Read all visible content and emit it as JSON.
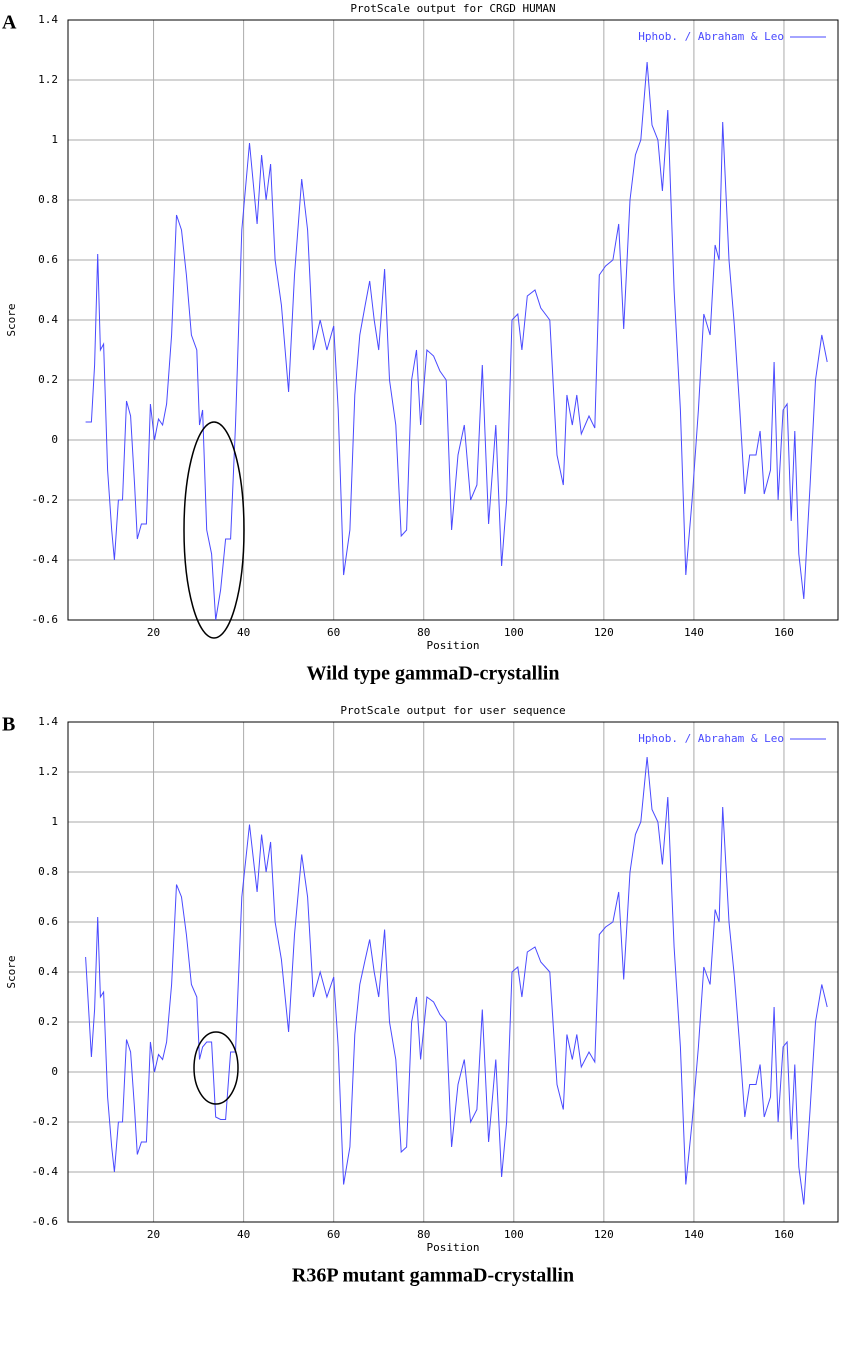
{
  "chart_data": [
    {
      "type": "line",
      "panel": "A",
      "title": "ProtScale output for CRGD HUMAN",
      "xlabel": "Position",
      "ylabel": "Score",
      "caption": "Wild type gammaD-crystallin",
      "xlim": [
        1,
        172
      ],
      "ylim": [
        -0.6,
        1.4
      ],
      "xticks": [
        20,
        40,
        60,
        80,
        100,
        120,
        140,
        160
      ],
      "yticks": [
        -0.6,
        -0.4,
        -0.2,
        0,
        0.2,
        0.4,
        0.6,
        0.8,
        1,
        1.2,
        1.4
      ],
      "grid": true,
      "legend": "upper right",
      "x": [
        4.9,
        6.2,
        6.9,
        7.6,
        8.2,
        8.9,
        9.8,
        10.7,
        11.3,
        12.2,
        13.1,
        14,
        14.9,
        15.8,
        16.4,
        17.3,
        18.4,
        19.3,
        20.2,
        21.1,
        22,
        22.9,
        24,
        25.1,
        26.2,
        27.3,
        28.4,
        29.6,
        30.2,
        30.9,
        31.8,
        32.9,
        33.8,
        34.9,
        36,
        37.1,
        38.2,
        39.6,
        41.3,
        43,
        44,
        45,
        46,
        47,
        48.4,
        50,
        51.3,
        52.9,
        54.2,
        55.5,
        57,
        58.5,
        60,
        61,
        62.2,
        63.6,
        64.7,
        65.8,
        67,
        68,
        69,
        70,
        71.3,
        72.4,
        73.8,
        75,
        76.2,
        77.3,
        78.4,
        79.3,
        80.7,
        82.2,
        83.6,
        85,
        86.2,
        87.6,
        89,
        90.4,
        91.8,
        93,
        94.4,
        96,
        97.3,
        98.4,
        99.6,
        100.9,
        101.8,
        103,
        104.7,
        106,
        108,
        109.6,
        111,
        111.8,
        113,
        114,
        115,
        116.7,
        118,
        119,
        120.4,
        122,
        123.3,
        124.4,
        125.8,
        127,
        128.2,
        129.6,
        130.7,
        132,
        133,
        134.2,
        135.6,
        137,
        138.2,
        139.6,
        141,
        142.2,
        143.6,
        144.7,
        145.6,
        146.4,
        147.8,
        149,
        150.2,
        151.3,
        152.4,
        153.8,
        154.7,
        155.6,
        157,
        157.8,
        158.7,
        159.8,
        160.7,
        161.6,
        162.4,
        163.3,
        164.4,
        165.8,
        167,
        168.4,
        169.6
      ],
      "series": [
        {
          "name": "Hphob. / Abraham & Leo",
          "color": "#4a4aff",
          "values": [
            0.06,
            0.06,
            0.25,
            0.62,
            0.3,
            0.32,
            -0.1,
            -0.3,
            -0.4,
            -0.2,
            -0.2,
            0.13,
            0.08,
            -0.15,
            -0.33,
            -0.28,
            -0.28,
            0.12,
            0,
            0.07,
            0.05,
            0.12,
            0.35,
            0.75,
            0.7,
            0.55,
            0.35,
            0.3,
            0.05,
            0.1,
            -0.3,
            -0.38,
            -0.6,
            -0.5,
            -0.33,
            -0.33,
            0.05,
            0.7,
            0.99,
            0.72,
            0.95,
            0.8,
            0.92,
            0.6,
            0.45,
            0.16,
            0.55,
            0.87,
            0.7,
            0.3,
            0.4,
            0.3,
            0.38,
            0.1,
            -0.45,
            -0.3,
            0.15,
            0.35,
            0.45,
            0.53,
            0.4,
            0.3,
            0.57,
            0.2,
            0.05,
            -0.32,
            -0.3,
            0.2,
            0.3,
            0.05,
            0.3,
            0.28,
            0.23,
            0.2,
            -0.3,
            -0.05,
            0.05,
            -0.2,
            -0.15,
            0.25,
            -0.28,
            0.05,
            -0.42,
            -0.2,
            0.4,
            0.42,
            0.3,
            0.48,
            0.5,
            0.44,
            0.4,
            -0.05,
            -0.15,
            0.15,
            0.05,
            0.15,
            0.02,
            0.08,
            0.04,
            0.55,
            0.58,
            0.6,
            0.72,
            0.37,
            0.8,
            0.95,
            1.0,
            1.26,
            1.05,
            1.0,
            0.83,
            1.1,
            0.5,
            0.1,
            -0.45,
            -0.2,
            0.1,
            0.42,
            0.35,
            0.65,
            0.6,
            1.06,
            0.6,
            0.38,
            0.1,
            -0.18,
            -0.05,
            -0.05,
            0.03,
            -0.18,
            -0.1,
            0.26,
            -0.2,
            0.1,
            0.12,
            -0.27,
            0.03,
            -0.38,
            -0.53,
            -0.15,
            0.2,
            0.35,
            0.26
          ]
        }
      ]
    },
    {
      "type": "line",
      "panel": "B",
      "title": "ProtScale output for user sequence",
      "xlabel": "Position",
      "ylabel": "Score",
      "caption": "R36P mutant gammaD-crystallin",
      "xlim": [
        1,
        172
      ],
      "ylim": [
        -0.6,
        1.4
      ],
      "xticks": [
        20,
        40,
        60,
        80,
        100,
        120,
        140,
        160
      ],
      "yticks": [
        -0.6,
        -0.4,
        -0.2,
        0,
        0.2,
        0.4,
        0.6,
        0.8,
        1,
        1.2,
        1.4
      ],
      "grid": true,
      "legend": "upper right",
      "x": [
        4.9,
        6.2,
        6.9,
        7.6,
        8.2,
        8.9,
        9.8,
        10.7,
        11.3,
        12.2,
        13.1,
        14,
        14.9,
        15.8,
        16.4,
        17.3,
        18.4,
        19.3,
        20.2,
        21.1,
        22,
        22.9,
        24,
        25.1,
        26.2,
        27.3,
        28.4,
        29.6,
        30.2,
        30.9,
        31.8,
        32.9,
        33.8,
        34.9,
        36,
        37.1,
        38.2,
        39.6,
        41.3,
        43,
        44,
        45,
        46,
        47,
        48.4,
        50,
        51.3,
        52.9,
        54.2,
        55.5,
        57,
        58.5,
        60,
        61,
        62.2,
        63.6,
        64.7,
        65.8,
        67,
        68,
        69,
        70,
        71.3,
        72.4,
        73.8,
        75,
        76.2,
        77.3,
        78.4,
        79.3,
        80.7,
        82.2,
        83.6,
        85,
        86.2,
        87.6,
        89,
        90.4,
        91.8,
        93,
        94.4,
        96,
        97.3,
        98.4,
        99.6,
        100.9,
        101.8,
        103,
        104.7,
        106,
        108,
        109.6,
        111,
        111.8,
        113,
        114,
        115,
        116.7,
        118,
        119,
        120.4,
        122,
        123.3,
        124.4,
        125.8,
        127,
        128.2,
        129.6,
        130.7,
        132,
        133,
        134.2,
        135.6,
        137,
        138.2,
        139.6,
        141,
        142.2,
        143.6,
        144.7,
        145.6,
        146.4,
        147.8,
        149,
        150.2,
        151.3,
        152.4,
        153.8,
        154.7,
        155.6,
        157,
        157.8,
        158.7,
        159.8,
        160.7,
        161.6,
        162.4,
        163.3,
        164.4,
        165.8,
        167,
        168.4,
        169.6
      ],
      "series": [
        {
          "name": "Hphob. / Abraham & Leo",
          "color": "#4a4aff",
          "values": [
            0.46,
            0.06,
            0.25,
            0.62,
            0.3,
            0.32,
            -0.1,
            -0.3,
            -0.4,
            -0.2,
            -0.2,
            0.13,
            0.08,
            -0.15,
            -0.33,
            -0.28,
            -0.28,
            0.12,
            0,
            0.07,
            0.05,
            0.12,
            0.35,
            0.75,
            0.7,
            0.55,
            0.35,
            0.3,
            0.05,
            0.1,
            0.12,
            0.12,
            -0.18,
            -0.19,
            -0.19,
            0.08,
            0.08,
            0.7,
            0.99,
            0.72,
            0.95,
            0.8,
            0.92,
            0.6,
            0.45,
            0.16,
            0.55,
            0.87,
            0.7,
            0.3,
            0.4,
            0.3,
            0.38,
            0.1,
            -0.45,
            -0.3,
            0.15,
            0.35,
            0.45,
            0.53,
            0.4,
            0.3,
            0.57,
            0.2,
            0.05,
            -0.32,
            -0.3,
            0.2,
            0.3,
            0.05,
            0.3,
            0.28,
            0.23,
            0.2,
            -0.3,
            -0.05,
            0.05,
            -0.2,
            -0.15,
            0.25,
            -0.28,
            0.05,
            -0.42,
            -0.2,
            0.4,
            0.42,
            0.3,
            0.48,
            0.5,
            0.44,
            0.4,
            -0.05,
            -0.15,
            0.15,
            0.05,
            0.15,
            0.02,
            0.08,
            0.04,
            0.55,
            0.58,
            0.6,
            0.72,
            0.37,
            0.8,
            0.95,
            1.0,
            1.26,
            1.05,
            1.0,
            0.83,
            1.1,
            0.5,
            0.1,
            -0.45,
            -0.2,
            0.1,
            0.42,
            0.35,
            0.65,
            0.6,
            1.06,
            0.6,
            0.38,
            0.1,
            -0.18,
            -0.05,
            -0.05,
            0.03,
            -0.18,
            -0.1,
            0.26,
            -0.2,
            0.1,
            0.12,
            -0.27,
            0.03,
            -0.38,
            -0.53,
            -0.15,
            0.2,
            0.35,
            0.26
          ]
        }
      ]
    }
  ]
}
